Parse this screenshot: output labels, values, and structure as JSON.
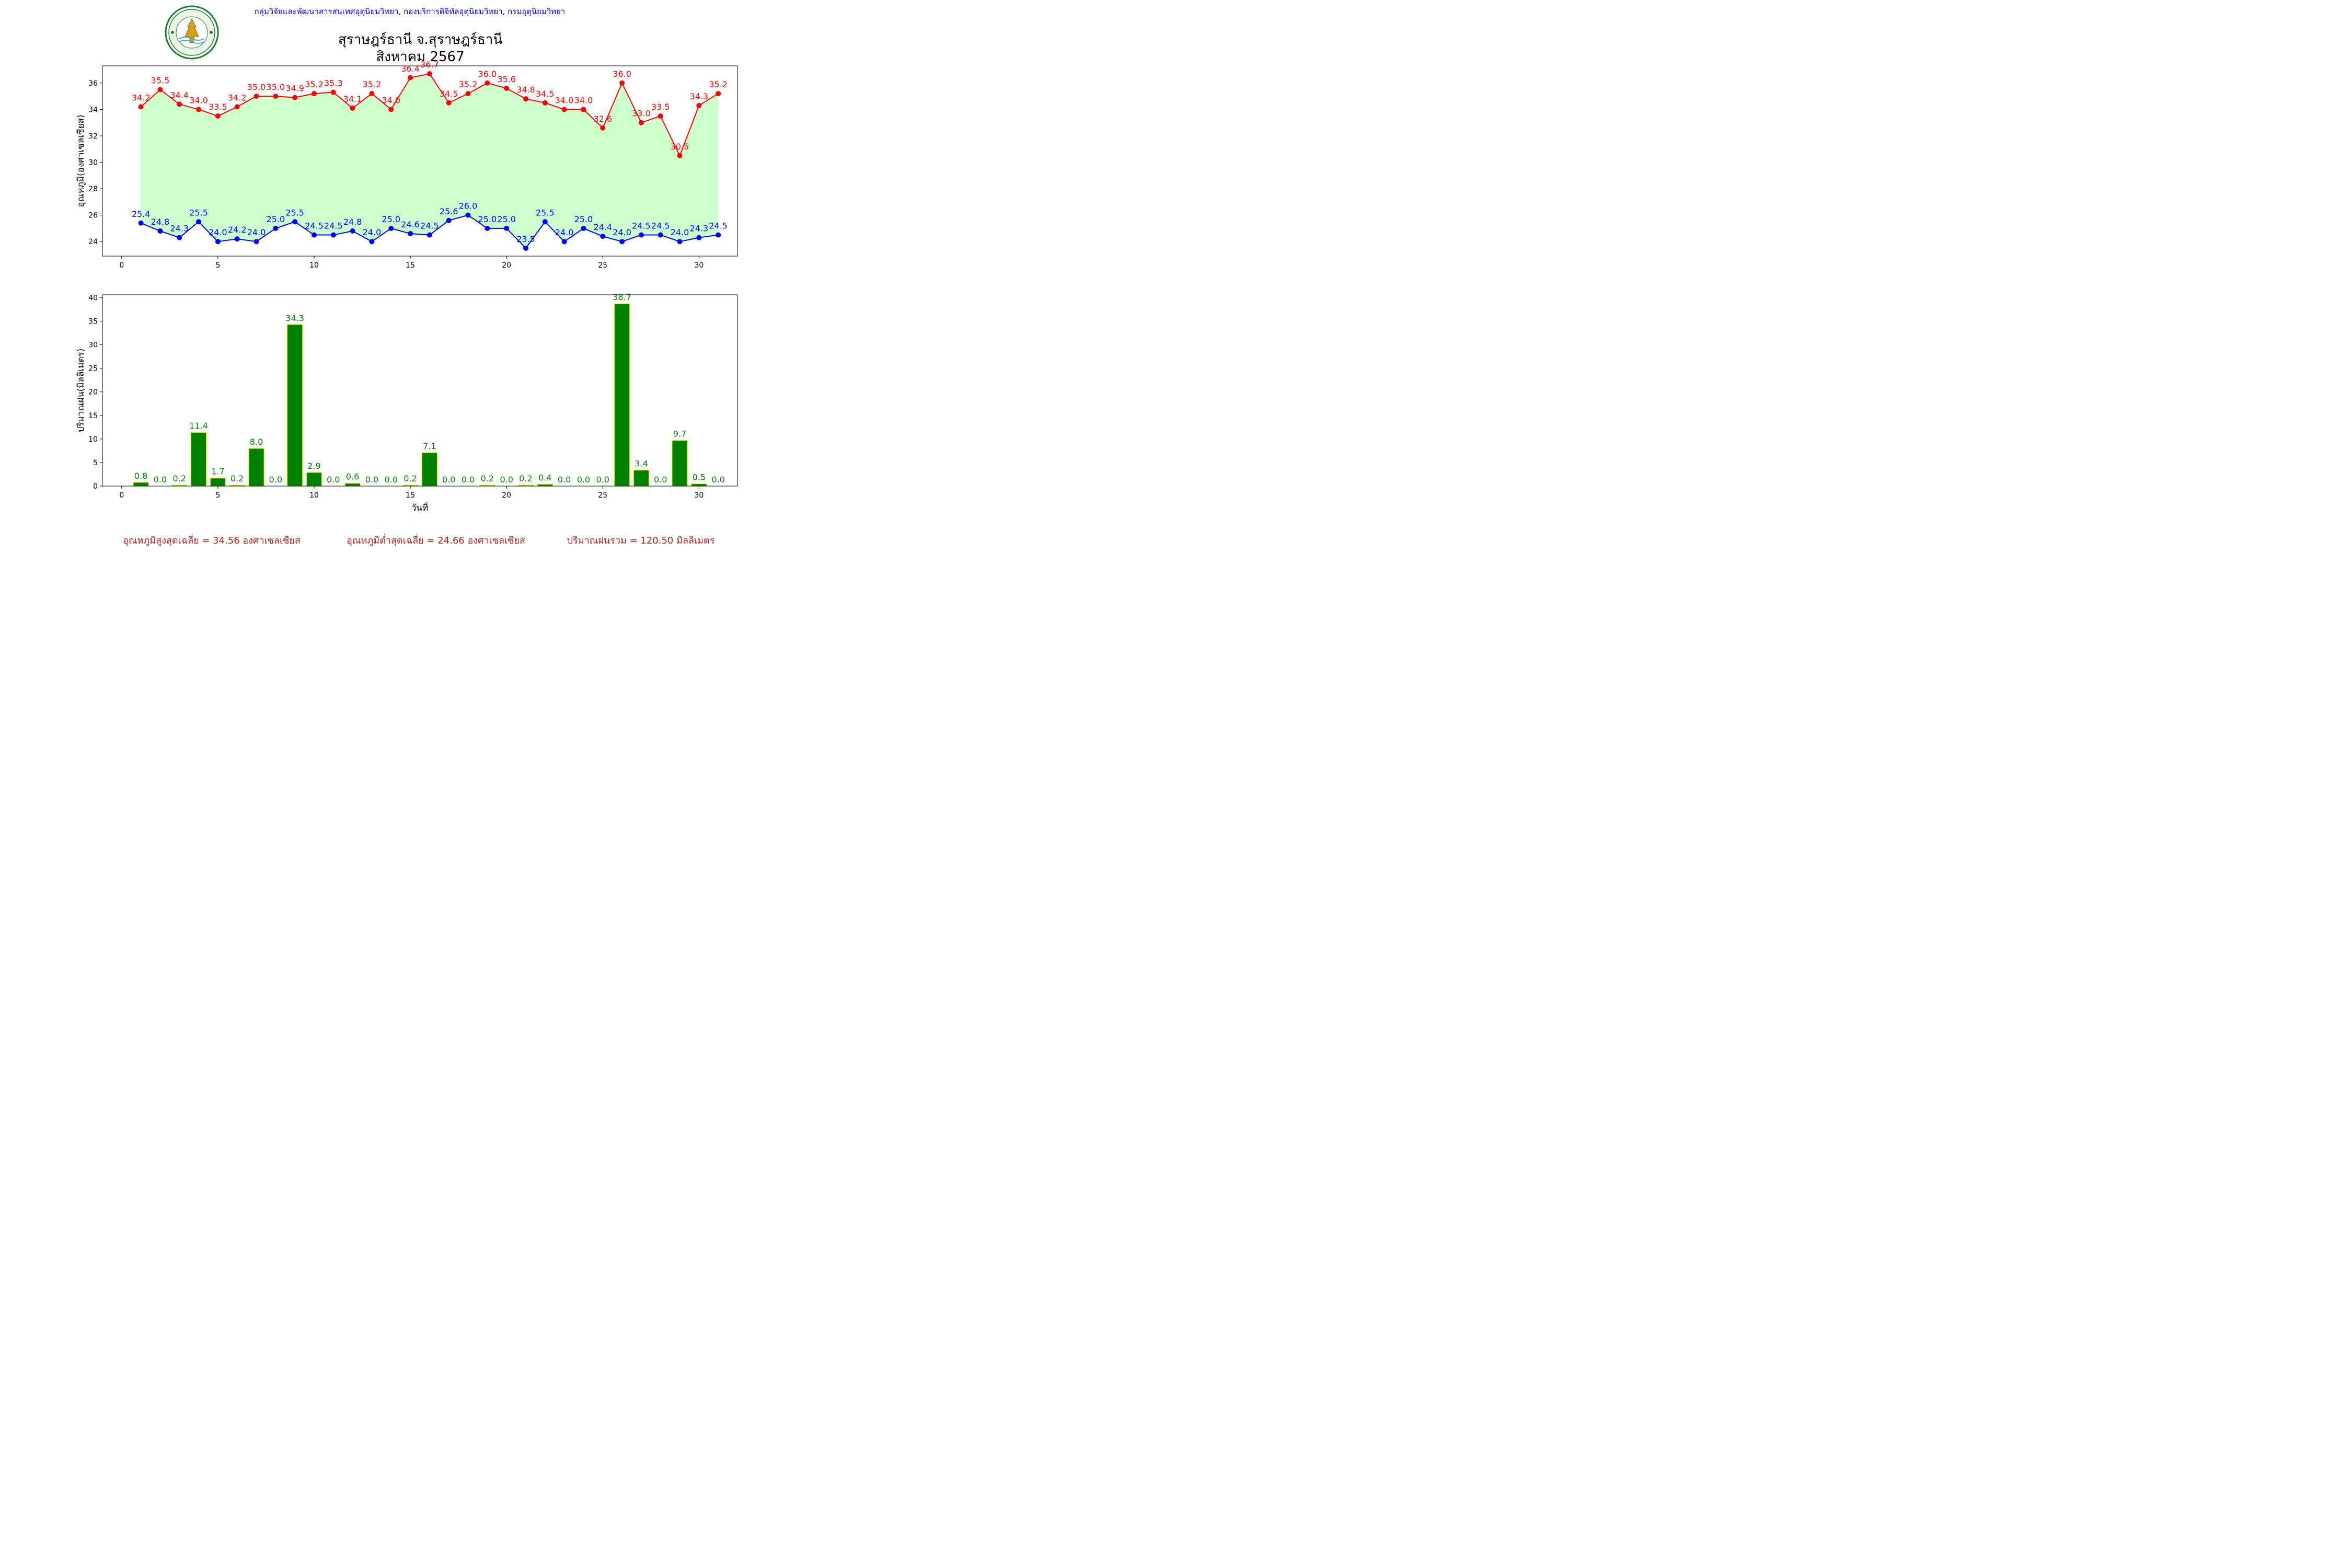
{
  "header": {
    "organization": "กลุ่มวิจัยและพัฒนาสารสนเทศอุตุนิยมวิทยา, กองบริการดิจิทัลอุตุนิยมวิทยา, กรมอุตุนิยมวิทยา",
    "title_line1": "สุราษฎร์ธานี จ.สุราษฎร์ธานี",
    "title_line2": "สิงหาคม 2567",
    "logo_text": "กรมอุตุนิยมวิทยา METEOROLOGICAL DEPARTMENT"
  },
  "colors": {
    "max_series": "#ff0000",
    "min_series": "#0000ff",
    "fill_between": "#ccffcc",
    "bar_fill": "#008000",
    "bar_edge": "#ffff00",
    "bar_label": "#008000",
    "header_text": "#0000ff",
    "summary_text": "#b22222"
  },
  "chart_data": [
    {
      "type": "line",
      "ylabel": "อุณหภูมิ(องศาเซลเซียส)",
      "xlim": [
        -1,
        32
      ],
      "ylim": [
        22.9,
        37.3
      ],
      "xticks": [
        0,
        5,
        10,
        15,
        20,
        25,
        30
      ],
      "yticks": [
        24,
        26,
        28,
        30,
        32,
        34,
        36
      ],
      "x": [
        1,
        2,
        3,
        4,
        5,
        6,
        7,
        8,
        9,
        10,
        11,
        12,
        13,
        14,
        15,
        16,
        17,
        18,
        19,
        20,
        21,
        22,
        23,
        24,
        25,
        26,
        27,
        28,
        29,
        30,
        31
      ],
      "series": [
        {
          "id": "max",
          "values": [
            34.2,
            35.5,
            34.4,
            34.0,
            33.5,
            34.2,
            35.0,
            35.0,
            34.9,
            35.2,
            35.3,
            34.1,
            35.2,
            34.0,
            36.4,
            36.7,
            34.5,
            35.2,
            36.0,
            35.6,
            34.8,
            34.5,
            34.0,
            34.0,
            32.6,
            36.0,
            33.0,
            33.5,
            30.5,
            34.3,
            35.2
          ]
        },
        {
          "id": "min",
          "values": [
            25.4,
            24.8,
            24.3,
            25.5,
            24.0,
            24.2,
            24.0,
            25.0,
            25.5,
            24.5,
            24.5,
            24.8,
            24.0,
            25.0,
            24.6,
            24.5,
            25.6,
            26.0,
            25.0,
            25.0,
            23.5,
            25.5,
            24.0,
            25.0,
            24.4,
            24.0,
            24.5,
            24.5,
            24.0,
            24.3,
            24.5
          ]
        }
      ],
      "fill_between": true,
      "grid": false
    },
    {
      "type": "bar",
      "ylabel": "ปริมาณฝน(มิลลิเมตร)",
      "xlabel": "วันที่",
      "xlim": [
        -1,
        32
      ],
      "ylim": [
        0,
        40.6
      ],
      "xticks": [
        0,
        5,
        10,
        15,
        20,
        25,
        30
      ],
      "yticks": [
        0,
        5,
        10,
        15,
        20,
        25,
        30,
        35,
        40
      ],
      "categories": [
        1,
        2,
        3,
        4,
        5,
        6,
        7,
        8,
        9,
        10,
        11,
        12,
        13,
        14,
        15,
        16,
        17,
        18,
        19,
        20,
        21,
        22,
        23,
        24,
        25,
        26,
        27,
        28,
        29,
        30,
        31
      ],
      "values": [
        0.8,
        0.0,
        0.2,
        11.4,
        1.7,
        0.2,
        8.0,
        0.0,
        34.3,
        2.9,
        0.0,
        0.6,
        0.0,
        0.0,
        0.2,
        7.1,
        0.0,
        0.0,
        0.2,
        0.0,
        0.2,
        0.4,
        0.0,
        0.0,
        0.0,
        38.7,
        3.4,
        0.0,
        9.7,
        0.5,
        0.0
      ],
      "grid": false
    }
  ],
  "summary": {
    "avg_max": "อุณหภูมิสูงสุดเฉลี่ย = 34.56 องศาเซลเซียส",
    "avg_min": "อุณหภูมิต่ำสุดเฉลี่ย = 24.66 องศาเซลเซียส",
    "total_rain": "ปริมาณฝนรวม = 120.50 มิลลิเมตร"
  }
}
